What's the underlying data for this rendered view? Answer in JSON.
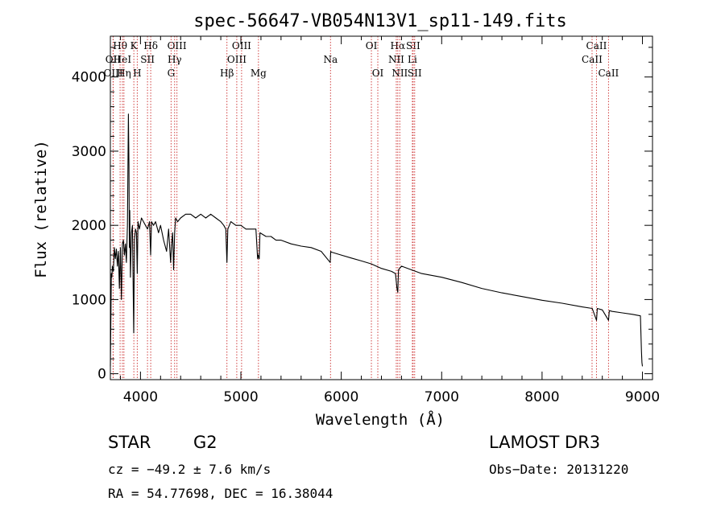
{
  "chart_data": {
    "type": "line",
    "title": "spec-56647-VB054N13V1_sp11-149.fits",
    "xlabel": "Wavelength (Å)",
    "ylabel": "Flux (relative)",
    "xlim": [
      3700,
      9100
    ],
    "ylim": [
      -80,
      4550
    ],
    "x_ticks": [
      4000,
      5000,
      6000,
      7000,
      8000,
      9000
    ],
    "y_ticks": [
      0,
      1000,
      2000,
      3000,
      4000
    ],
    "series": [
      {
        "name": "spectrum",
        "x": [
          3700,
          3705,
          3710,
          3715,
          3720,
          3730,
          3740,
          3750,
          3760,
          3770,
          3780,
          3790,
          3800,
          3810,
          3820,
          3830,
          3840,
          3850,
          3860,
          3870,
          3880,
          3885,
          3889,
          3893,
          3900,
          3910,
          3920,
          3933,
          3940,
          3950,
          3960,
          3968,
          3975,
          3990,
          4010,
          4030,
          4050,
          4070,
          4090,
          4101,
          4110,
          4130,
          4150,
          4180,
          4200,
          4230,
          4260,
          4280,
          4300,
          4310,
          4320,
          4330,
          4340,
          4350,
          4370,
          4400,
          4450,
          4500,
          4550,
          4600,
          4650,
          4700,
          4750,
          4800,
          4830,
          4850,
          4861,
          4870,
          4900,
          4950,
          5000,
          5050,
          5100,
          5150,
          5167,
          5172,
          5183,
          5190,
          5250,
          5300,
          5350,
          5400,
          5500,
          5600,
          5700,
          5800,
          5890,
          5895,
          5900,
          6000,
          6100,
          6200,
          6300,
          6400,
          6500,
          6540,
          6555,
          6563,
          6570,
          6600,
          6700,
          6800,
          7000,
          7200,
          7400,
          7600,
          7800,
          8000,
          8200,
          8400,
          8500,
          8542,
          8550,
          8600,
          8662,
          8670,
          8700,
          8800,
          8900,
          8980,
          8990,
          8995,
          9000
        ],
        "values": [
          100,
          700,
          1350,
          1300,
          1450,
          1380,
          1700,
          1550,
          1680,
          1450,
          1650,
          1150,
          1700,
          1000,
          1750,
          1800,
          1600,
          1750,
          1500,
          2000,
          3500,
          2800,
          1700,
          2200,
          1300,
          1900,
          2000,
          550,
          1800,
          1950,
          1900,
          1350,
          2050,
          1950,
          2100,
          2050,
          2000,
          1950,
          2050,
          1600,
          2050,
          2000,
          2050,
          1900,
          2000,
          1800,
          1650,
          1950,
          1500,
          1750,
          1900,
          1400,
          1900,
          2100,
          2050,
          2100,
          2150,
          2150,
          2100,
          2150,
          2100,
          2150,
          2100,
          2050,
          2000,
          1950,
          1500,
          1950,
          2050,
          2000,
          2000,
          1950,
          1950,
          1950,
          1550,
          1600,
          1550,
          1900,
          1850,
          1850,
          1800,
          1800,
          1750,
          1720,
          1700,
          1650,
          1500,
          1650,
          1640,
          1600,
          1560,
          1520,
          1480,
          1420,
          1380,
          1350,
          1150,
          1100,
          1400,
          1450,
          1400,
          1350,
          1300,
          1230,
          1150,
          1090,
          1040,
          990,
          950,
          900,
          880,
          720,
          880,
          860,
          720,
          850,
          840,
          820,
          800,
          780,
          300,
          150,
          100
        ]
      }
    ],
    "spectral_lines": [
      {
        "label": "Hθ",
        "wl": 3797,
        "row": 1
      },
      {
        "label": "OII",
        "wl": 3727,
        "row": 2
      },
      {
        "label": "OIII",
        "wl": 3729,
        "row": 3
      },
      {
        "label": "HeI",
        "wl": 3820,
        "row": 2
      },
      {
        "label": "Hη",
        "wl": 3835,
        "row": 3
      },
      {
        "label": "K",
        "wl": 3934,
        "row": 1
      },
      {
        "label": "SII",
        "wl": 4070,
        "row": 2
      },
      {
        "label": "H",
        "wl": 3968,
        "row": 3
      },
      {
        "label": "Hδ",
        "wl": 4102,
        "row": 1
      },
      {
        "label": "OIII",
        "wl": 4363,
        "row": 1
      },
      {
        "label": "Hγ",
        "wl": 4340,
        "row": 2
      },
      {
        "label": "G",
        "wl": 4305,
        "row": 3
      },
      {
        "label": "Hβ",
        "wl": 4861,
        "row": 3
      },
      {
        "label": "OIII",
        "wl": 5007,
        "row": 1
      },
      {
        "label": "OIII",
        "wl": 4959,
        "row": 2
      },
      {
        "label": "Mg",
        "wl": 5175,
        "row": 3
      },
      {
        "label": "Na",
        "wl": 5893,
        "row": 2
      },
      {
        "label": "OI",
        "wl": 6300,
        "row": 1
      },
      {
        "label": "OI",
        "wl": 6364,
        "row": 3
      },
      {
        "label": "Hα",
        "wl": 6563,
        "row": 1
      },
      {
        "label": "NII",
        "wl": 6548,
        "row": 2
      },
      {
        "label": "NII",
        "wl": 6583,
        "row": 3
      },
      {
        "label": "SII",
        "wl": 6716,
        "row": 1
      },
      {
        "label": "Li",
        "wl": 6708,
        "row": 2
      },
      {
        "label": "SII",
        "wl": 6731,
        "row": 3
      },
      {
        "label": "CaII",
        "wl": 8542,
        "row": 1
      },
      {
        "label": "CaII",
        "wl": 8498,
        "row": 2
      },
      {
        "label": "CaII",
        "wl": 8662,
        "row": 3
      }
    ]
  },
  "info": {
    "object_class": "STAR",
    "subclass": "G2",
    "survey": "LAMOST DR3",
    "velocity": "cz = −49.2 ± 7.6 km/s",
    "obs_date": "Obs−Date: 20131220",
    "coords": "RA =  54.77698, DEC =  16.38044"
  },
  "colors": {
    "line_marker": "#d04040",
    "spectrum": "#000000"
  }
}
